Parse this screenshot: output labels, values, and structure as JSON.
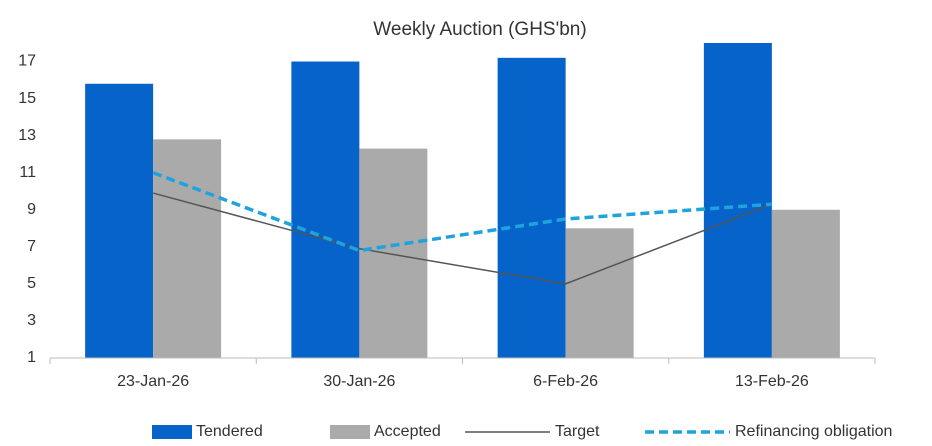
{
  "chart_data": {
    "type": "bar",
    "title": "Weekly Auction (GHS'bn)",
    "categories": [
      "23-Jan-26",
      "30-Jan-26",
      "6-Feb-26",
      "13-Feb-26"
    ],
    "series": [
      {
        "name": "Tendered",
        "type": "bar",
        "color": "#0563c9",
        "values": [
          15.8,
          17.0,
          17.2,
          18.0
        ]
      },
      {
        "name": "Accepted",
        "type": "bar",
        "color": "#aaaaaa",
        "values": [
          12.8,
          12.3,
          8.0,
          9.0
        ]
      },
      {
        "name": "Target",
        "type": "line",
        "color": "#555555",
        "values": [
          9.9,
          6.9,
          5.0,
          9.3
        ]
      },
      {
        "name": "Refinancing obligation",
        "type": "line",
        "dashed": true,
        "color": "#1fa3dc",
        "values": [
          11.0,
          6.8,
          8.5,
          9.3
        ]
      }
    ],
    "ylim": [
      1,
      18
    ],
    "yticks": [
      1,
      3,
      5,
      7,
      9,
      11,
      13,
      15,
      17
    ],
    "grid": false,
    "legend": "bottom"
  }
}
